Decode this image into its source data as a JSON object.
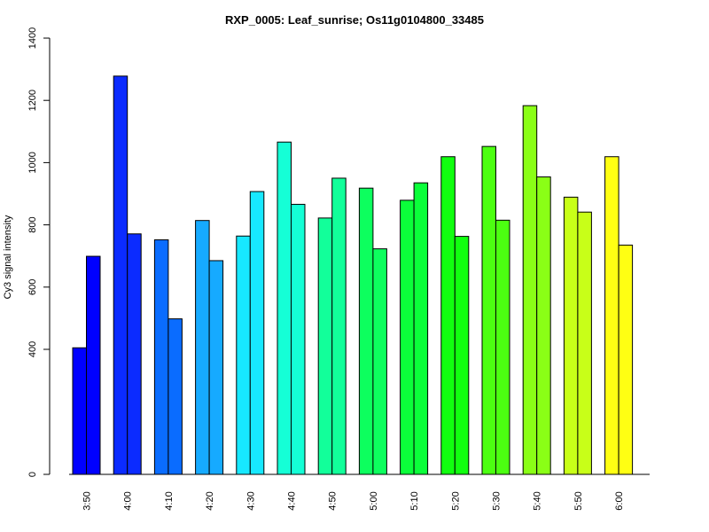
{
  "chart_data": {
    "type": "bar",
    "title": "RXP_0005: Leaf_sunrise; Os11g0104800_33485",
    "xlabel": "",
    "ylabel": "Cy3 signal intensity",
    "yticks": [
      0,
      400,
      600,
      800,
      1000,
      1200,
      1400
    ],
    "ylim": [
      0,
      1400
    ],
    "categories": [
      "3:50",
      "4:00",
      "4:10",
      "4:20",
      "4:30",
      "4:40",
      "4:50",
      "5:00",
      "5:10",
      "5:20",
      "5:30",
      "5:40",
      "5:50",
      "6:00"
    ],
    "colors": [
      "#0000ff",
      "#0b2bff",
      "#0a6cff",
      "#16aaff",
      "#17e8ff",
      "#15ffd6",
      "#12ff9a",
      "#0dff5e",
      "#0bff3a",
      "#11ff0f",
      "#4cff11",
      "#8aff16",
      "#c8ff18",
      "#ffff13"
    ],
    "series": [
      {
        "values": [
          405,
          1278,
          752,
          814,
          764,
          1066,
          822,
          918,
          879,
          1019,
          1052,
          1183,
          889,
          1019
        ]
      },
      {
        "values": [
          699,
          771,
          498,
          685,
          907,
          866,
          950,
          723,
          935,
          763,
          815,
          954,
          841,
          735
        ]
      }
    ]
  }
}
